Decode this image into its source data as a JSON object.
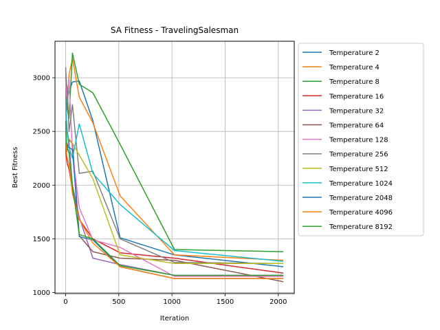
{
  "chart_data": {
    "type": "line",
    "title": "SA Fitness - TravelingSalesman",
    "xlabel": "Iteration",
    "ylabel": "Best Fitness",
    "xlim": [
      -100,
      2150
    ],
    "ylim": [
      990,
      3340
    ],
    "xticks": [
      0,
      500,
      1000,
      1500,
      2000
    ],
    "yticks": [
      1000,
      1500,
      2000,
      2500,
      3000
    ],
    "grid": true,
    "legend_position": "outside-right",
    "x": [
      1,
      2,
      4,
      8,
      16,
      32,
      64,
      128,
      256,
      512,
      1024,
      2048
    ],
    "series": [
      {
        "name": "Temperature 2",
        "color": "#1f77b4",
        "values": [
          3070,
          3050,
          3000,
          2950,
          2820,
          2870,
          2960,
          2970,
          2600,
          1510,
          1350,
          1240
        ]
      },
      {
        "name": "Temperature 4",
        "color": "#ff7f0e",
        "values": [
          3000,
          2900,
          2800,
          2700,
          2700,
          3030,
          3180,
          2820,
          2580,
          1900,
          1350,
          1300
        ]
      },
      {
        "name": "Temperature 8",
        "color": "#2ca02c",
        "values": [
          3080,
          3000,
          2900,
          2800,
          2700,
          2620,
          3230,
          2940,
          2860,
          2380,
          1400,
          1380
        ]
      },
      {
        "name": "Temperature 16",
        "color": "#d62728",
        "values": [
          2400,
          2350,
          2300,
          2250,
          2200,
          2150,
          1950,
          1680,
          1500,
          1370,
          1320,
          1180
        ]
      },
      {
        "name": "Temperature 32",
        "color": "#9467bd",
        "values": [
          2900,
          2800,
          2700,
          2600,
          2500,
          2400,
          2000,
          1700,
          1320,
          1260,
          1160,
          1160
        ]
      },
      {
        "name": "Temperature 64",
        "color": "#8c564b",
        "values": [
          2350,
          2300,
          2280,
          2300,
          2350,
          2420,
          2390,
          1530,
          1380,
          1320,
          1300,
          1100
        ]
      },
      {
        "name": "Temperature 128",
        "color": "#e377c2",
        "values": [
          3020,
          2950,
          2900,
          2850,
          2800,
          2980,
          2300,
          1790,
          1490,
          1420,
          1150,
          1150
        ]
      },
      {
        "name": "Temperature 256",
        "color": "#7f7f7f",
        "values": [
          3100,
          3050,
          3000,
          2950,
          2900,
          2500,
          2750,
          2110,
          2130,
          1500,
          1280,
          1270
        ]
      },
      {
        "name": "Temperature 512",
        "color": "#bcbd22",
        "values": [
          2600,
          2550,
          2500,
          2480,
          2450,
          2430,
          2390,
          2280,
          2060,
          1350,
          1270,
          1270
        ]
      },
      {
        "name": "Temperature 1024",
        "color": "#17becf",
        "values": [
          2800,
          2700,
          2600,
          2520,
          2480,
          2350,
          2250,
          2570,
          2110,
          1820,
          1390,
          1290
        ]
      },
      {
        "name": "Temperature 2048",
        "color": "#1f77b4",
        "values": [
          2500,
          2450,
          2400,
          2380,
          2360,
          2350,
          2330,
          1520,
          1490,
          1240,
          1130,
          1130
        ]
      },
      {
        "name": "Temperature 4096",
        "color": "#ff7f0e",
        "values": [
          2500,
          2450,
          2380,
          2300,
          2250,
          2200,
          1920,
          1680,
          1460,
          1240,
          1130,
          1130
        ]
      },
      {
        "name": "Temperature 8192",
        "color": "#2ca02c",
        "values": [
          2600,
          2500,
          2450,
          2400,
          2350,
          2300,
          1990,
          1540,
          1500,
          1250,
          1160,
          1160
        ]
      }
    ]
  }
}
